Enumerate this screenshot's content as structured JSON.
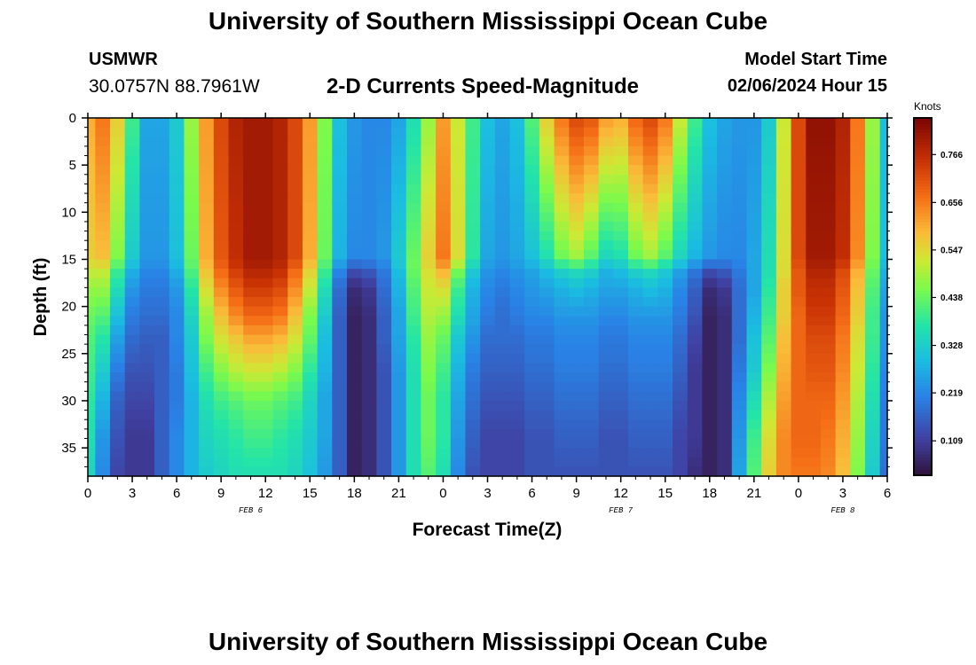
{
  "header": {
    "title": "University of Southern Mississippi Ocean Cube",
    "station": "USMWR",
    "coordinates": "30.0757N  88.7961W",
    "subtitle": "2-D Currents Speed-Magnitude",
    "model_start_label": "Model Start Time",
    "model_start_value": "02/06/2024 Hour 15"
  },
  "footer": {
    "title": "University of Southern Mississippi Ocean Cube"
  },
  "chart_data": {
    "type": "heatmap",
    "title": "2-D Currents Speed-Magnitude",
    "xlabel": "Forecast Time(Z)",
    "ylabel": "Depth (ft)",
    "x_tick_labels": [
      "0",
      "3",
      "6",
      "9",
      "12",
      "15",
      "18",
      "21",
      "0",
      "3",
      "6",
      "9",
      "12",
      "15",
      "18",
      "21",
      "0",
      "3",
      "6"
    ],
    "x_range_hours": [
      0,
      54
    ],
    "date_labels": [
      {
        "label": "FEB 6",
        "hour": 11
      },
      {
        "label": "FEB 7",
        "hour": 36
      },
      {
        "label": "FEB 8",
        "hour": 51
      }
    ],
    "y_tick_labels": [
      "0",
      "5",
      "10",
      "15",
      "20",
      "25",
      "30",
      "35"
    ],
    "y_range_ft": [
      0,
      38
    ],
    "y_ticks_ft": [
      0,
      5,
      10,
      15,
      20,
      25,
      30,
      35
    ],
    "colorbar": {
      "units": "Knots",
      "range": [
        0.03,
        0.85
      ],
      "tick_values": [
        0.109,
        0.219,
        0.328,
        0.438,
        0.547,
        0.656,
        0.766
      ],
      "tick_labels": [
        "0.109",
        "0.219",
        "0.328",
        "0.438",
        "0.547",
        "0.656",
        "0.766"
      ]
    },
    "grid": {
      "time_step_hours": 1,
      "depth_step_ft": 1,
      "depths_ft": [
        0,
        15,
        16,
        18,
        21,
        23,
        27,
        30,
        34,
        38
      ],
      "rows": [
        [
          0.6,
          0.66,
          0.56,
          0.4,
          0.26,
          0.26,
          0.32,
          0.48,
          0.62,
          0.72,
          0.78,
          0.8,
          0.8,
          0.78,
          0.72,
          0.62,
          0.46,
          0.3,
          0.24,
          0.22,
          0.22,
          0.26,
          0.36,
          0.48,
          0.62,
          0.52,
          0.4,
          0.3,
          0.26,
          0.3,
          0.42,
          0.56,
          0.66,
          0.72,
          0.7,
          0.62,
          0.6,
          0.68,
          0.72,
          0.66,
          0.52,
          0.4,
          0.3,
          0.26,
          0.24,
          0.24,
          0.32,
          0.52,
          0.72,
          0.82,
          0.82,
          0.78,
          0.66,
          0.48,
          0.3
        ],
        [
          0.56,
          0.58,
          0.46,
          0.32,
          0.24,
          0.24,
          0.3,
          0.44,
          0.6,
          0.7,
          0.76,
          0.8,
          0.8,
          0.78,
          0.72,
          0.6,
          0.44,
          0.28,
          0.22,
          0.22,
          0.24,
          0.32,
          0.44,
          0.56,
          0.66,
          0.54,
          0.38,
          0.26,
          0.24,
          0.26,
          0.3,
          0.36,
          0.44,
          0.48,
          0.42,
          0.34,
          0.36,
          0.44,
          0.48,
          0.42,
          0.34,
          0.28,
          0.24,
          0.22,
          0.22,
          0.26,
          0.36,
          0.54,
          0.72,
          0.8,
          0.8,
          0.76,
          0.64,
          0.46,
          0.3
        ],
        [
          0.52,
          0.52,
          0.4,
          0.28,
          0.22,
          0.22,
          0.28,
          0.42,
          0.58,
          0.68,
          0.74,
          0.78,
          0.78,
          0.76,
          0.68,
          0.56,
          0.4,
          0.22,
          0.14,
          0.16,
          0.2,
          0.3,
          0.44,
          0.54,
          0.6,
          0.46,
          0.32,
          0.24,
          0.22,
          0.24,
          0.26,
          0.3,
          0.34,
          0.36,
          0.34,
          0.28,
          0.3,
          0.34,
          0.36,
          0.32,
          0.26,
          0.2,
          0.14,
          0.16,
          0.2,
          0.26,
          0.36,
          0.54,
          0.7,
          0.78,
          0.78,
          0.72,
          0.6,
          0.44,
          0.28
        ],
        [
          0.48,
          0.48,
          0.36,
          0.24,
          0.2,
          0.2,
          0.24,
          0.38,
          0.54,
          0.64,
          0.7,
          0.74,
          0.74,
          0.72,
          0.64,
          0.52,
          0.36,
          0.18,
          0.08,
          0.1,
          0.18,
          0.28,
          0.42,
          0.52,
          0.54,
          0.4,
          0.28,
          0.22,
          0.2,
          0.22,
          0.24,
          0.26,
          0.28,
          0.3,
          0.28,
          0.26,
          0.26,
          0.28,
          0.3,
          0.28,
          0.22,
          0.16,
          0.08,
          0.1,
          0.18,
          0.26,
          0.38,
          0.56,
          0.7,
          0.76,
          0.76,
          0.7,
          0.58,
          0.42,
          0.26
        ],
        [
          0.44,
          0.42,
          0.3,
          0.2,
          0.18,
          0.18,
          0.22,
          0.34,
          0.48,
          0.58,
          0.64,
          0.68,
          0.68,
          0.66,
          0.58,
          0.46,
          0.32,
          0.16,
          0.06,
          0.08,
          0.16,
          0.26,
          0.4,
          0.5,
          0.48,
          0.36,
          0.26,
          0.2,
          0.18,
          0.2,
          0.22,
          0.22,
          0.24,
          0.24,
          0.24,
          0.22,
          0.22,
          0.24,
          0.24,
          0.24,
          0.2,
          0.14,
          0.06,
          0.08,
          0.18,
          0.28,
          0.4,
          0.56,
          0.68,
          0.74,
          0.74,
          0.68,
          0.56,
          0.4,
          0.24
        ],
        [
          0.42,
          0.38,
          0.26,
          0.18,
          0.16,
          0.16,
          0.22,
          0.32,
          0.46,
          0.54,
          0.58,
          0.62,
          0.62,
          0.6,
          0.54,
          0.44,
          0.3,
          0.16,
          0.06,
          0.08,
          0.16,
          0.26,
          0.38,
          0.48,
          0.44,
          0.32,
          0.24,
          0.18,
          0.18,
          0.18,
          0.2,
          0.2,
          0.22,
          0.22,
          0.22,
          0.2,
          0.2,
          0.22,
          0.22,
          0.22,
          0.18,
          0.12,
          0.06,
          0.08,
          0.18,
          0.3,
          0.42,
          0.58,
          0.68,
          0.72,
          0.72,
          0.66,
          0.54,
          0.4,
          0.24
        ],
        [
          0.4,
          0.32,
          0.2,
          0.14,
          0.14,
          0.16,
          0.2,
          0.3,
          0.4,
          0.46,
          0.5,
          0.52,
          0.52,
          0.5,
          0.46,
          0.38,
          0.28,
          0.16,
          0.06,
          0.08,
          0.14,
          0.24,
          0.36,
          0.46,
          0.4,
          0.28,
          0.2,
          0.16,
          0.16,
          0.16,
          0.18,
          0.18,
          0.2,
          0.2,
          0.2,
          0.18,
          0.18,
          0.2,
          0.2,
          0.2,
          0.16,
          0.1,
          0.06,
          0.08,
          0.2,
          0.32,
          0.46,
          0.6,
          0.68,
          0.7,
          0.7,
          0.64,
          0.52,
          0.38,
          0.22
        ],
        [
          0.38,
          0.28,
          0.16,
          0.12,
          0.12,
          0.16,
          0.2,
          0.28,
          0.36,
          0.4,
          0.42,
          0.44,
          0.44,
          0.42,
          0.4,
          0.34,
          0.26,
          0.16,
          0.06,
          0.08,
          0.14,
          0.24,
          0.36,
          0.44,
          0.38,
          0.26,
          0.18,
          0.14,
          0.14,
          0.14,
          0.16,
          0.16,
          0.18,
          0.18,
          0.18,
          0.16,
          0.16,
          0.18,
          0.18,
          0.18,
          0.14,
          0.1,
          0.06,
          0.08,
          0.22,
          0.36,
          0.5,
          0.62,
          0.68,
          0.68,
          0.68,
          0.62,
          0.5,
          0.36,
          0.2
        ],
        [
          0.36,
          0.24,
          0.14,
          0.1,
          0.1,
          0.16,
          0.22,
          0.28,
          0.34,
          0.36,
          0.38,
          0.4,
          0.4,
          0.38,
          0.36,
          0.32,
          0.26,
          0.16,
          0.06,
          0.08,
          0.14,
          0.24,
          0.36,
          0.44,
          0.38,
          0.24,
          0.16,
          0.12,
          0.12,
          0.12,
          0.14,
          0.14,
          0.16,
          0.16,
          0.16,
          0.14,
          0.14,
          0.16,
          0.16,
          0.16,
          0.12,
          0.1,
          0.06,
          0.08,
          0.24,
          0.4,
          0.54,
          0.64,
          0.68,
          0.68,
          0.66,
          0.6,
          0.48,
          0.34,
          0.2
        ],
        [
          0.34,
          0.22,
          0.12,
          0.1,
          0.1,
          0.16,
          0.22,
          0.28,
          0.32,
          0.34,
          0.36,
          0.36,
          0.36,
          0.36,
          0.34,
          0.3,
          0.24,
          0.16,
          0.06,
          0.08,
          0.14,
          0.24,
          0.36,
          0.42,
          0.36,
          0.22,
          0.14,
          0.12,
          0.12,
          0.12,
          0.14,
          0.14,
          0.14,
          0.14,
          0.14,
          0.14,
          0.14,
          0.14,
          0.14,
          0.14,
          0.12,
          0.08,
          0.06,
          0.08,
          0.26,
          0.42,
          0.56,
          0.64,
          0.66,
          0.66,
          0.64,
          0.58,
          0.46,
          0.32,
          0.18
        ]
      ]
    }
  }
}
